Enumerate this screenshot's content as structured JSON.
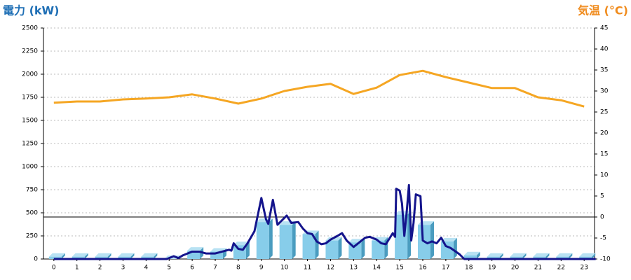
{
  "chart_data": {
    "type": "combo",
    "ylabel": "電力 (kW)",
    "ylabel_color": "#1f6fb5",
    "y2label": "気温 (°C)",
    "y2label_color": "#f08c1e",
    "xlim": [
      -0.45,
      23.45
    ],
    "xticks": [
      0,
      1,
      2,
      3,
      4,
      5,
      6,
      7,
      8,
      9,
      10,
      11,
      12,
      13,
      14,
      15,
      16,
      17,
      18,
      19,
      20,
      21,
      22,
      23
    ],
    "ylim": [
      0,
      2500
    ],
    "yticks": [
      0,
      250,
      500,
      750,
      1000,
      1250,
      1500,
      1750,
      2000,
      2250,
      2500
    ],
    "y2lim": [
      -10,
      45
    ],
    "y2ticks": [
      -10,
      -5,
      0,
      5,
      10,
      15,
      20,
      25,
      30,
      35,
      40,
      45
    ],
    "grid": true,
    "series": [
      {
        "type": "bar",
        "color": "#87cdea",
        "x": [
          0,
          1,
          2,
          3,
          4,
          5,
          6,
          7,
          8,
          9,
          10,
          11,
          12,
          13,
          14,
          15,
          16,
          17,
          18,
          19,
          20,
          21,
          22,
          23
        ],
        "values": [
          25,
          25,
          25,
          25,
          25,
          0,
          90,
          80,
          150,
          400,
          370,
          270,
          200,
          180,
          200,
          480,
          370,
          190,
          40,
          25,
          25,
          25,
          25,
          25
        ]
      },
      {
        "type": "line",
        "axis": "y2",
        "color": "#f5a623",
        "x": [
          0,
          1,
          2,
          3,
          4,
          5,
          6,
          7,
          8,
          9,
          10,
          11,
          12,
          13,
          14,
          15,
          16,
          17,
          18,
          19,
          20,
          21,
          22,
          23
        ],
        "values": [
          27.2,
          27.5,
          27.5,
          28,
          28.2,
          28.5,
          29.2,
          28.2,
          27,
          28.2,
          30,
          31,
          31.7,
          29.3,
          30.8,
          33.8,
          34.8,
          33.3,
          32,
          30.7,
          30.7,
          28.5,
          27.8,
          26.3
        ]
      },
      {
        "type": "line",
        "color": "#14148c",
        "x": [
          0,
          4.9,
          5.2,
          5.4,
          5.6,
          6,
          6.3,
          6.6,
          7,
          7.3,
          7.6,
          7.7,
          7.8,
          8,
          8.2,
          8.4,
          8.7,
          9,
          9.2,
          9.3,
          9.5,
          9.7,
          9.9,
          10.1,
          10.3,
          10.6,
          10.8,
          11,
          11.2,
          11.4,
          11.6,
          11.8,
          12,
          12.3,
          12.5,
          12.7,
          13,
          13.2,
          13.5,
          13.7,
          14,
          14.2,
          14.4,
          14.7,
          14.8,
          14.85,
          15,
          15.1,
          15.2,
          15.3,
          15.4,
          15.5,
          15.6,
          15.7,
          15.9,
          16,
          16.2,
          16.4,
          16.6,
          16.8,
          17,
          17.2,
          17.6,
          17.8,
          23.5
        ],
        "values": [
          0,
          0,
          30,
          10,
          40,
          80,
          80,
          60,
          60,
          80,
          100,
          90,
          170,
          110,
          100,
          170,
          300,
          660,
          430,
          380,
          640,
          370,
          420,
          470,
          390,
          400,
          330,
          280,
          270,
          190,
          160,
          170,
          210,
          250,
          280,
          200,
          130,
          170,
          230,
          240,
          210,
          170,
          160,
          280,
          240,
          760,
          740,
          600,
          250,
          500,
          800,
          200,
          390,
          700,
          680,
          200,
          170,
          190,
          170,
          230,
          140,
          120,
          50,
          0,
          0
        ]
      }
    ]
  }
}
